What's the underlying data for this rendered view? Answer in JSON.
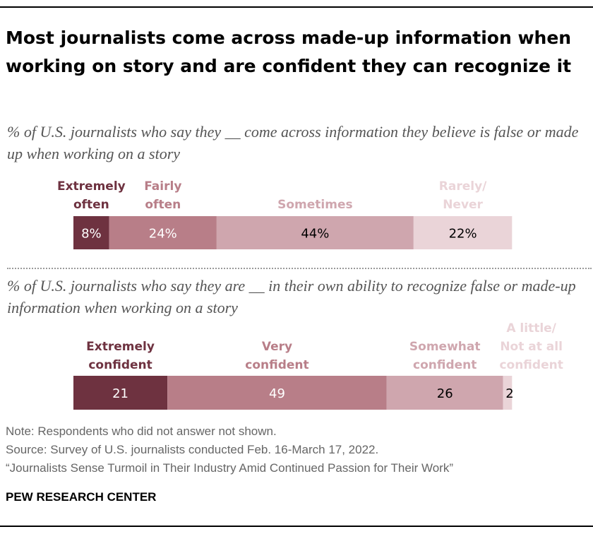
{
  "title": "Most journalists come across made-up information when working on story and are confident they can recognize it",
  "chart_data": [
    {
      "type": "bar",
      "orientation": "horizontal-stacked",
      "subtitle": "% of U.S. journalists who say they __ come across information they believe is false or made up when working on a story",
      "categories": [
        "Extremely often",
        "Fairly often",
        "Sometimes",
        "Rarely/ Never"
      ],
      "values": [
        8,
        24,
        44,
        22
      ],
      "value_labels": [
        "8%",
        "24%",
        "44%",
        "22%"
      ],
      "label_lines": [
        [
          "Extremely",
          "often"
        ],
        [
          "Fairly",
          "often"
        ],
        [
          "Sometimes"
        ],
        [
          "Rarely/",
          "Never"
        ]
      ],
      "colors": [
        "#6e3240",
        "#b87e88",
        "#cfa6ae",
        "#ead4d8"
      ],
      "label_colors": [
        "#6e3240",
        "#b87e88",
        "#cfa6ae",
        "#ead4d8"
      ],
      "value_text_colors": [
        "#ffffff",
        "#ffffff",
        "#000000",
        "#000000"
      ]
    },
    {
      "type": "bar",
      "orientation": "horizontal-stacked",
      "subtitle": "% of U.S. journalists who say they are __ in their own ability to recognize false or made-up information when working on a story",
      "categories": [
        "Extremely confident",
        "Very confident",
        "Somewhat confident",
        "A little/ Not at all confident"
      ],
      "values": [
        21,
        49,
        26,
        2
      ],
      "value_labels": [
        "21",
        "49",
        "26",
        "2"
      ],
      "label_lines": [
        [
          "Extremely",
          "confident"
        ],
        [
          "Very",
          "confident"
        ],
        [
          "Somewhat",
          "confident"
        ],
        [
          "A little/",
          "Not at all",
          "confident"
        ]
      ],
      "colors": [
        "#6e3240",
        "#b87e88",
        "#cfa6ae",
        "#ead4d8"
      ],
      "label_colors": [
        "#6e3240",
        "#b87e88",
        "#cfa6ae",
        "#ead4d8"
      ],
      "value_text_colors": [
        "#ffffff",
        "#ffffff",
        "#000000",
        "#000000"
      ]
    }
  ],
  "notes": {
    "note": "Note: Respondents who did not answer not shown.",
    "source": "Source: Survey of U.S. journalists conducted Feb. 16-March 17, 2022.",
    "report": "“Journalists Sense Turmoil in Their Industry Amid Continued Passion for Their Work”"
  },
  "brand": "PEW RESEARCH CENTER"
}
